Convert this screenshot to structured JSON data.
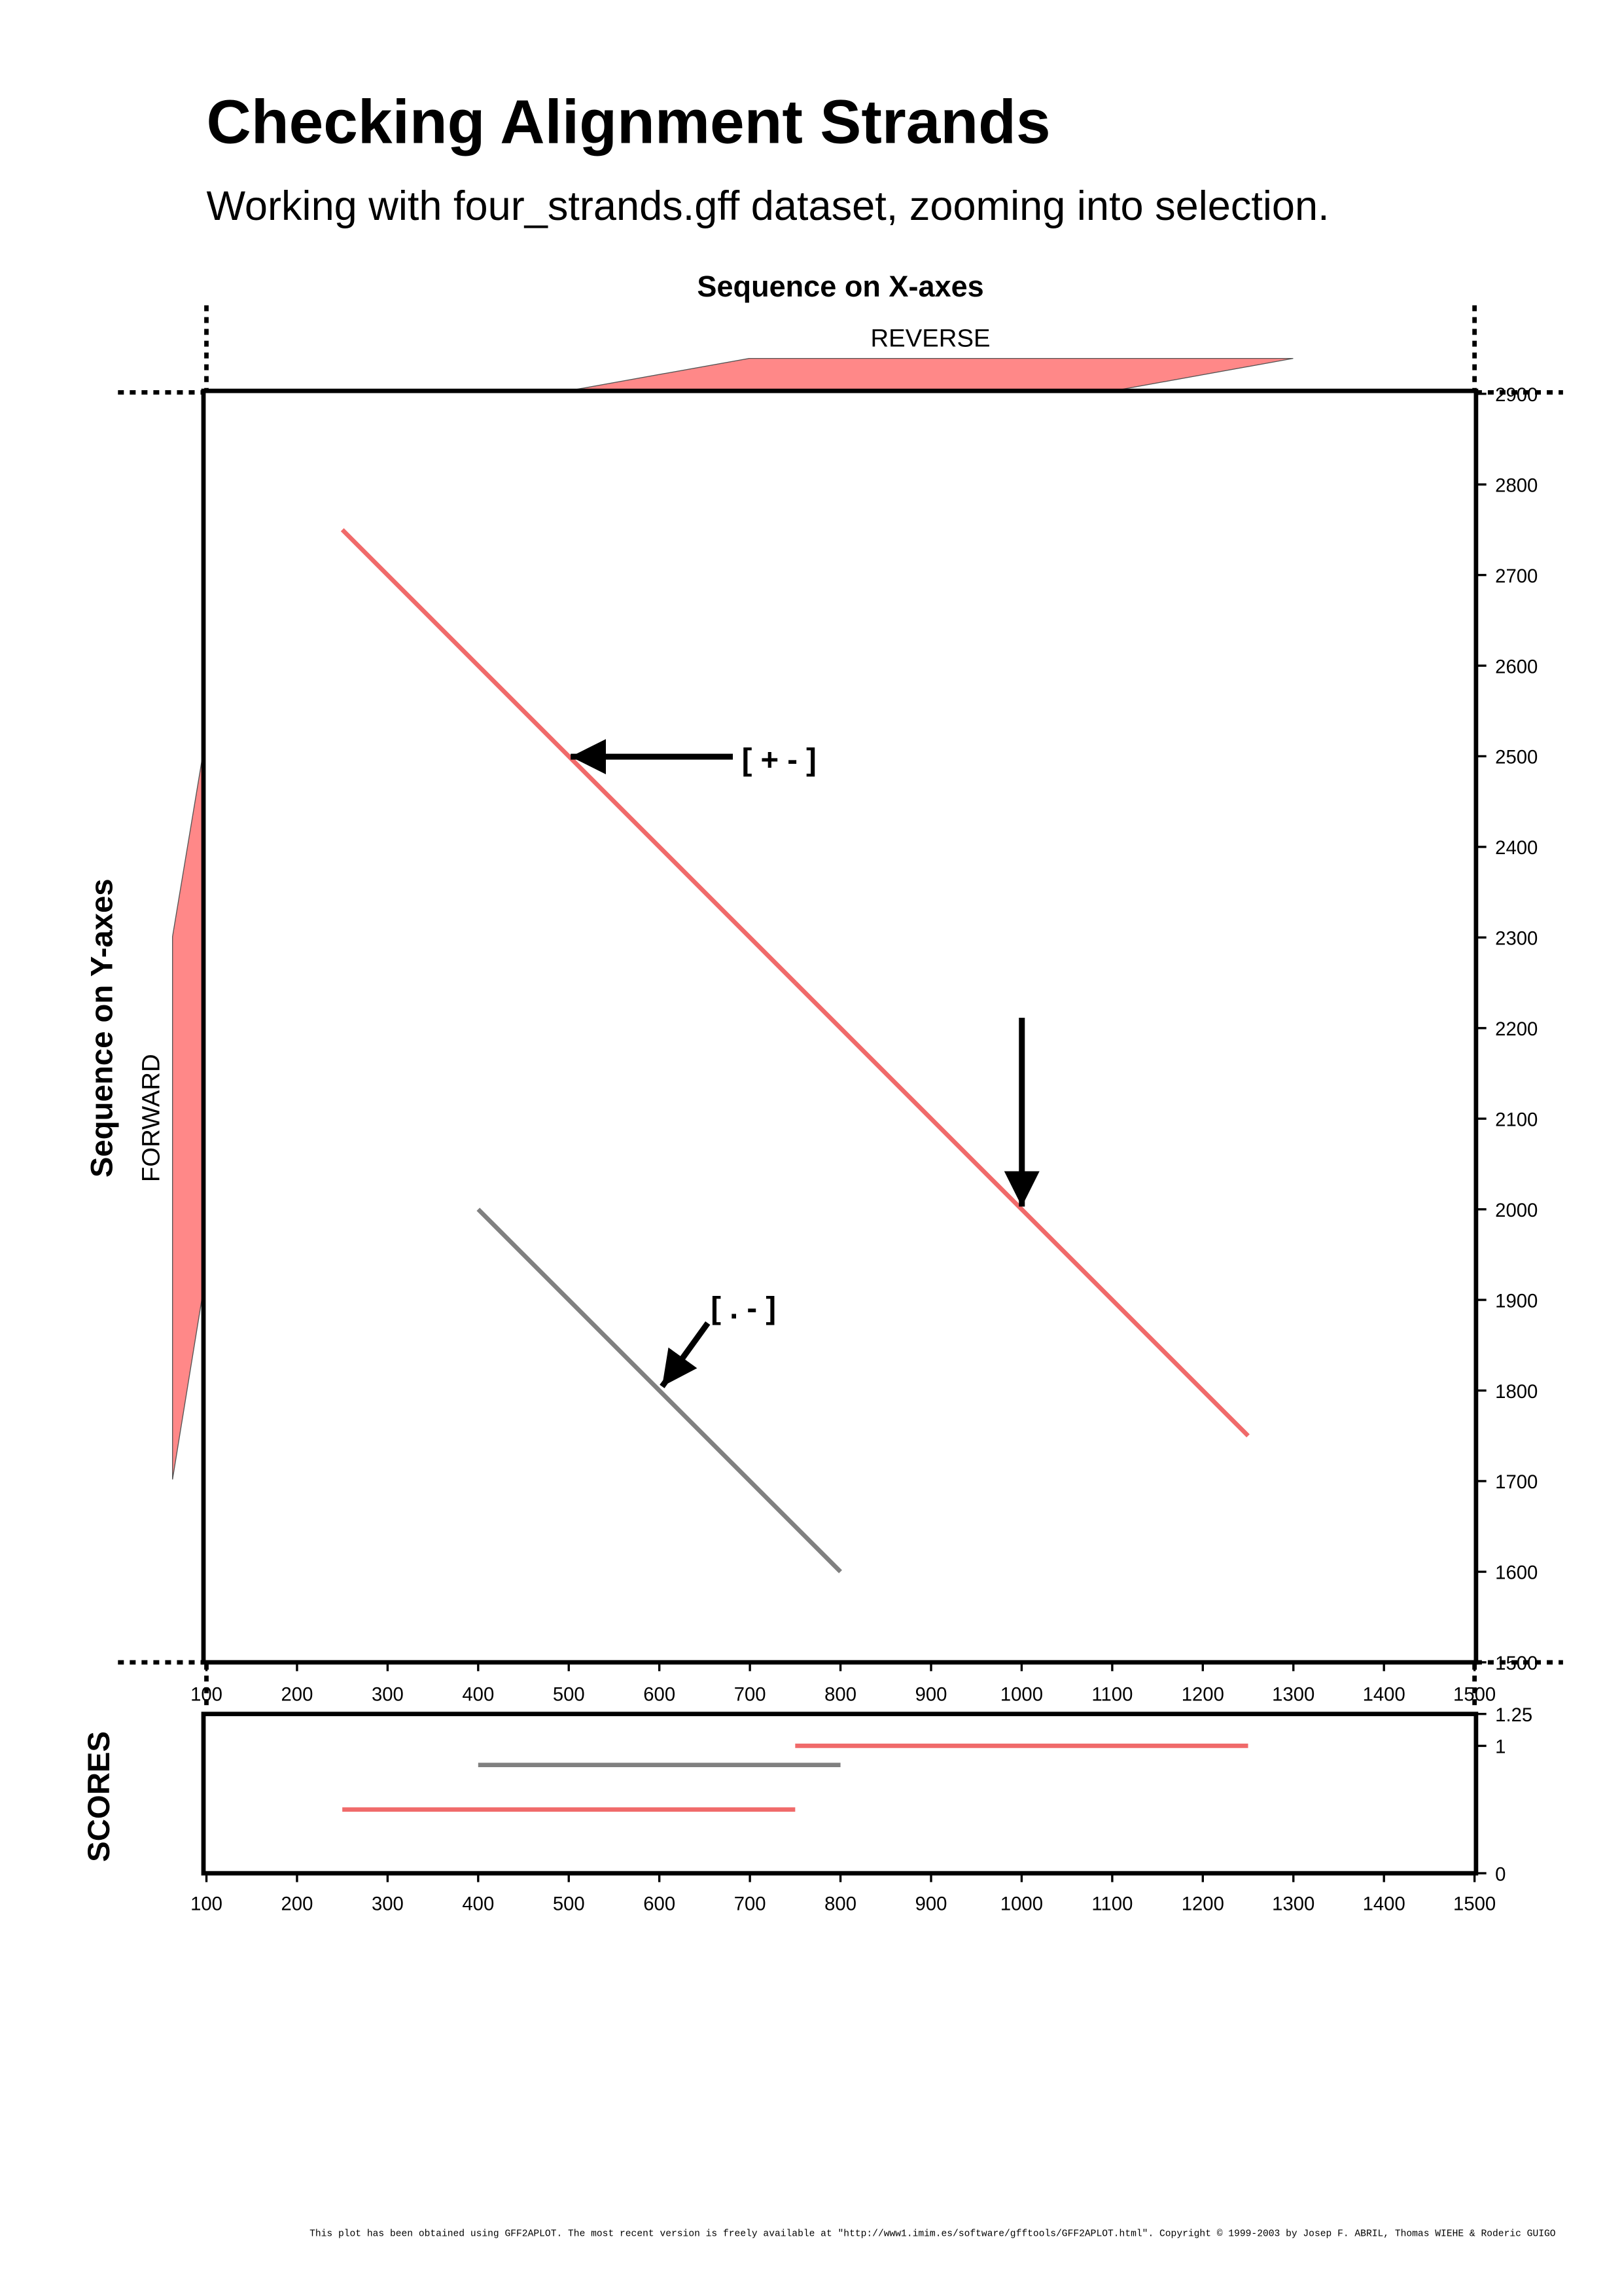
{
  "title": "Checking Alignment Strands",
  "subtitle": "Working with four_strands.gff dataset, zooming into selection.",
  "footer": "This plot has been obtained using GFF2APLOT. The most recent version is freely available at \"http://www1.imim.es/software/gfftools/GFF2APLOT.html\". Copyright © 1999-2003 by Josep F. ABRIL, Thomas WIEHE & Roderic GUIGO",
  "chart_data": [
    {
      "type": "line",
      "x_label": "Sequence on X-axes",
      "y_label": "Sequence on Y-axes",
      "top_strand": "REVERSE",
      "left_strand": "FORWARD",
      "annotations": [
        "[ + - ]",
        "[ . - ]"
      ],
      "xlim": [
        100,
        1500
      ],
      "xticks": [
        100,
        200,
        300,
        400,
        500,
        600,
        700,
        800,
        900,
        1000,
        1100,
        1200,
        1300,
        1400,
        1500
      ],
      "ylim": [
        1500,
        2900
      ],
      "yticks": [
        1500,
        1600,
        1700,
        1800,
        1900,
        2000,
        2100,
        2200,
        2300,
        2400,
        2500,
        2600,
        2700,
        2800,
        2900
      ],
      "series": [
        {
          "color": "#f06a6a",
          "x": [
            250,
            750
          ],
          "values": [
            2750,
            2250
          ]
        },
        {
          "color": "#f06a6a",
          "x": [
            750,
            1250
          ],
          "values": [
            2250,
            1750
          ]
        },
        {
          "color": "#808080",
          "x": [
            400,
            800
          ],
          "values": [
            2000,
            1600
          ]
        }
      ]
    },
    {
      "type": "line",
      "y_label": "SCORES",
      "xlim": [
        100,
        1500
      ],
      "xticks": [
        100,
        200,
        300,
        400,
        500,
        600,
        700,
        800,
        900,
        1000,
        1100,
        1200,
        1300,
        1400,
        1500
      ],
      "ylim": [
        0,
        1.25
      ],
      "yticks": [
        0,
        1,
        1.25
      ],
      "series": [
        {
          "color": "#f06a6a",
          "x": [
            750,
            1250
          ],
          "values": [
            1,
            1
          ]
        },
        {
          "color": "#808080",
          "x": [
            400,
            800
          ],
          "values": [
            0.85,
            0.85
          ]
        },
        {
          "color": "#f06a6a",
          "x": [
            250,
            750
          ],
          "values": [
            0.5,
            0.5
          ]
        }
      ]
    }
  ]
}
